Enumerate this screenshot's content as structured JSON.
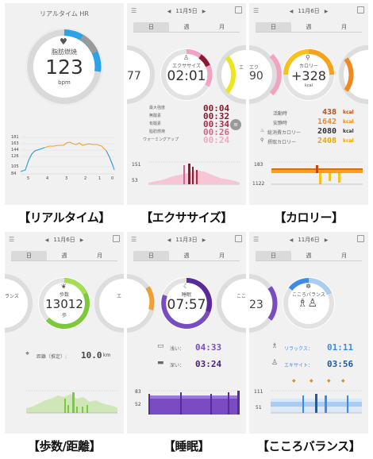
{
  "captions": [
    "【リアルタイム】",
    "【エクササイズ】",
    "【カロリー】",
    "【歩数/距離】",
    "【睡眠】",
    "【こころバランス】"
  ],
  "tabs": [
    "日",
    "週",
    "月"
  ],
  "realtime": {
    "title": "リアルタイム HR",
    "label": "脂肪燃焼",
    "value": "123",
    "unit": "bpm",
    "y_ticks": [
      "181",
      "163",
      "144",
      "126",
      "105",
      "84"
    ],
    "x_ticks": [
      "5",
      "4",
      "3",
      "2",
      "1",
      "0"
    ]
  },
  "exercise": {
    "date": "11月5日",
    "label": "エクササイズ",
    "value": "02:01",
    "left_peek": "77",
    "right_peek": "エ",
    "rows": [
      {
        "label": "最大強度",
        "value": "00:04"
      },
      {
        "label": "無酸素",
        "value": "00:32"
      },
      {
        "label": "有酸素",
        "value": "00:34"
      },
      {
        "label": "脂肪燃焼",
        "value": "00:26"
      },
      {
        "label": "ウォーミングアップ",
        "value": "00:24"
      }
    ],
    "y_top": "151",
    "y_bottom": "53"
  },
  "calorie": {
    "date": "11月6日",
    "label": "カロリー",
    "value": "+328",
    "unit": "kcal",
    "left_peek": "エク",
    "left_peek_value": "90",
    "rows": [
      {
        "label": "活動時",
        "value": "438",
        "unit": "kcal"
      },
      {
        "label": "安静時",
        "value": "1642",
        "unit": "kcal"
      },
      {
        "label": "総消費カロリー",
        "value": "2080",
        "unit": "kcal"
      },
      {
        "label": "摂取カロリー",
        "value": "2408",
        "unit": "kcal"
      }
    ],
    "y_top": "183",
    "y_bottom": "1122"
  },
  "steps": {
    "date": "11月6日",
    "label": "歩数",
    "value": "13012",
    "unit": "歩",
    "left_peek": "ランス",
    "right_peek": "エ",
    "distance_label": "距離（推定）:",
    "distance_value": "10.0",
    "distance_unit": "km"
  },
  "sleep": {
    "date": "11月3日",
    "label": "睡眠",
    "value": "07:57",
    "right_peek": "こころ",
    "light_label": "浅い：",
    "light_value": "04:33",
    "deep_label": "深い：",
    "deep_value": "03:24",
    "y_top": "83",
    "y_bottom": "52"
  },
  "balance": {
    "date": "11月6日",
    "label": "こころバランス",
    "left_peek": "23",
    "relax_label": "リラックス：",
    "relax_value": "01:11",
    "excite_label": "エキサイト：",
    "excite_value": "03:56",
    "y_top": "111",
    "y_bottom": "51"
  },
  "colors": {
    "realtime_ring": "#2ba3e8",
    "exercise_ring": "#f3a3c2",
    "calorie_ring": "#f7a11f",
    "steps_ring": "#7cc93a",
    "sleep_ring": "#7a4cc2",
    "balance_ring": "#3c8be8",
    "exercise_val": "#8a1a2e",
    "calorie_val": "#c24a12"
  }
}
